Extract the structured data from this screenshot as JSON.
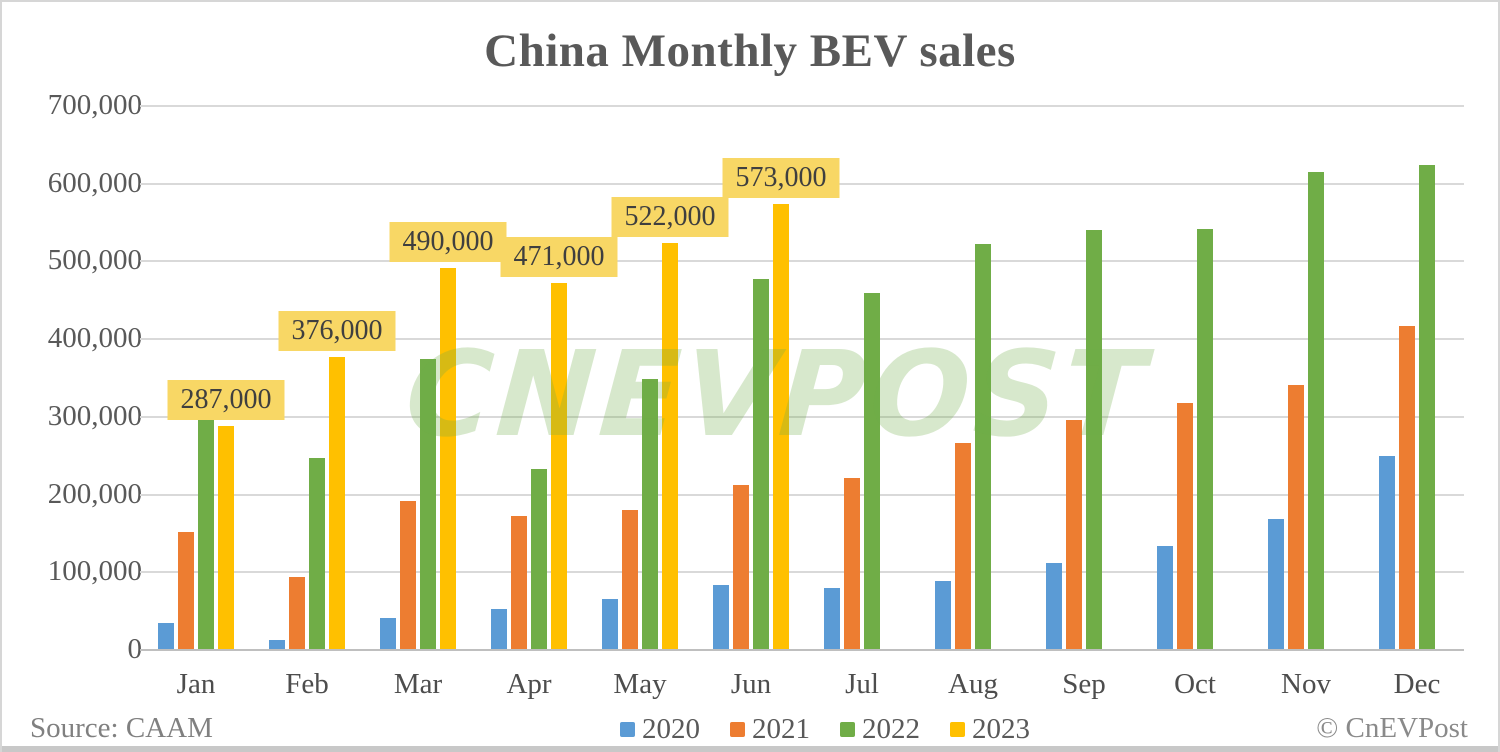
{
  "title": "China Monthly BEV sales",
  "source": "Source: CAAM",
  "copyright": "© CnEVPost",
  "watermark": "CNEVPOST",
  "colors": {
    "series_2020": "#5B9BD5",
    "series_2021": "#ED7D31",
    "series_2022": "#70AD47",
    "series_2023": "#FFC000",
    "gridline": "#D9D9D9",
    "axis_text": "#595959",
    "data_label_bg": "#F8D765",
    "watermark_green": "#70AD47"
  },
  "chart_data": {
    "type": "bar",
    "title": "China Monthly BEV sales",
    "categories": [
      "Jan",
      "Feb",
      "Mar",
      "Apr",
      "May",
      "Jun",
      "Jul",
      "Aug",
      "Sep",
      "Oct",
      "Nov",
      "Dec"
    ],
    "series": [
      {
        "name": "2020",
        "color": "#5B9BD5",
        "values": [
          34000,
          11000,
          40000,
          52000,
          64000,
          82000,
          78000,
          88000,
          111000,
          133000,
          167000,
          248000
        ]
      },
      {
        "name": "2021",
        "color": "#ED7D31",
        "values": [
          151000,
          93000,
          190000,
          171000,
          179000,
          211000,
          220000,
          265000,
          295000,
          316000,
          340000,
          416000
        ]
      },
      {
        "name": "2022",
        "color": "#70AD47",
        "values": [
          300000,
          246000,
          373000,
          231000,
          347000,
          476000,
          458000,
          521000,
          539000,
          540000,
          614000,
          623000
        ]
      },
      {
        "name": "2023",
        "color": "#FFC000",
        "values": [
          287000,
          376000,
          490000,
          471000,
          522000,
          573000,
          null,
          null,
          null,
          null,
          null,
          null
        ],
        "show_labels": true,
        "label_texts": [
          "287,000",
          "376,000",
          "490,000",
          "471,000",
          "522,000",
          "573,000"
        ]
      }
    ],
    "ylim": [
      0,
      700000
    ],
    "y_tick_step": 100000,
    "y_tick_labels": [
      "0",
      "100,000",
      "200,000",
      "300,000",
      "400,000",
      "500,000",
      "600,000",
      "700,000"
    ],
    "grid": true,
    "legend_position": "bottom"
  }
}
